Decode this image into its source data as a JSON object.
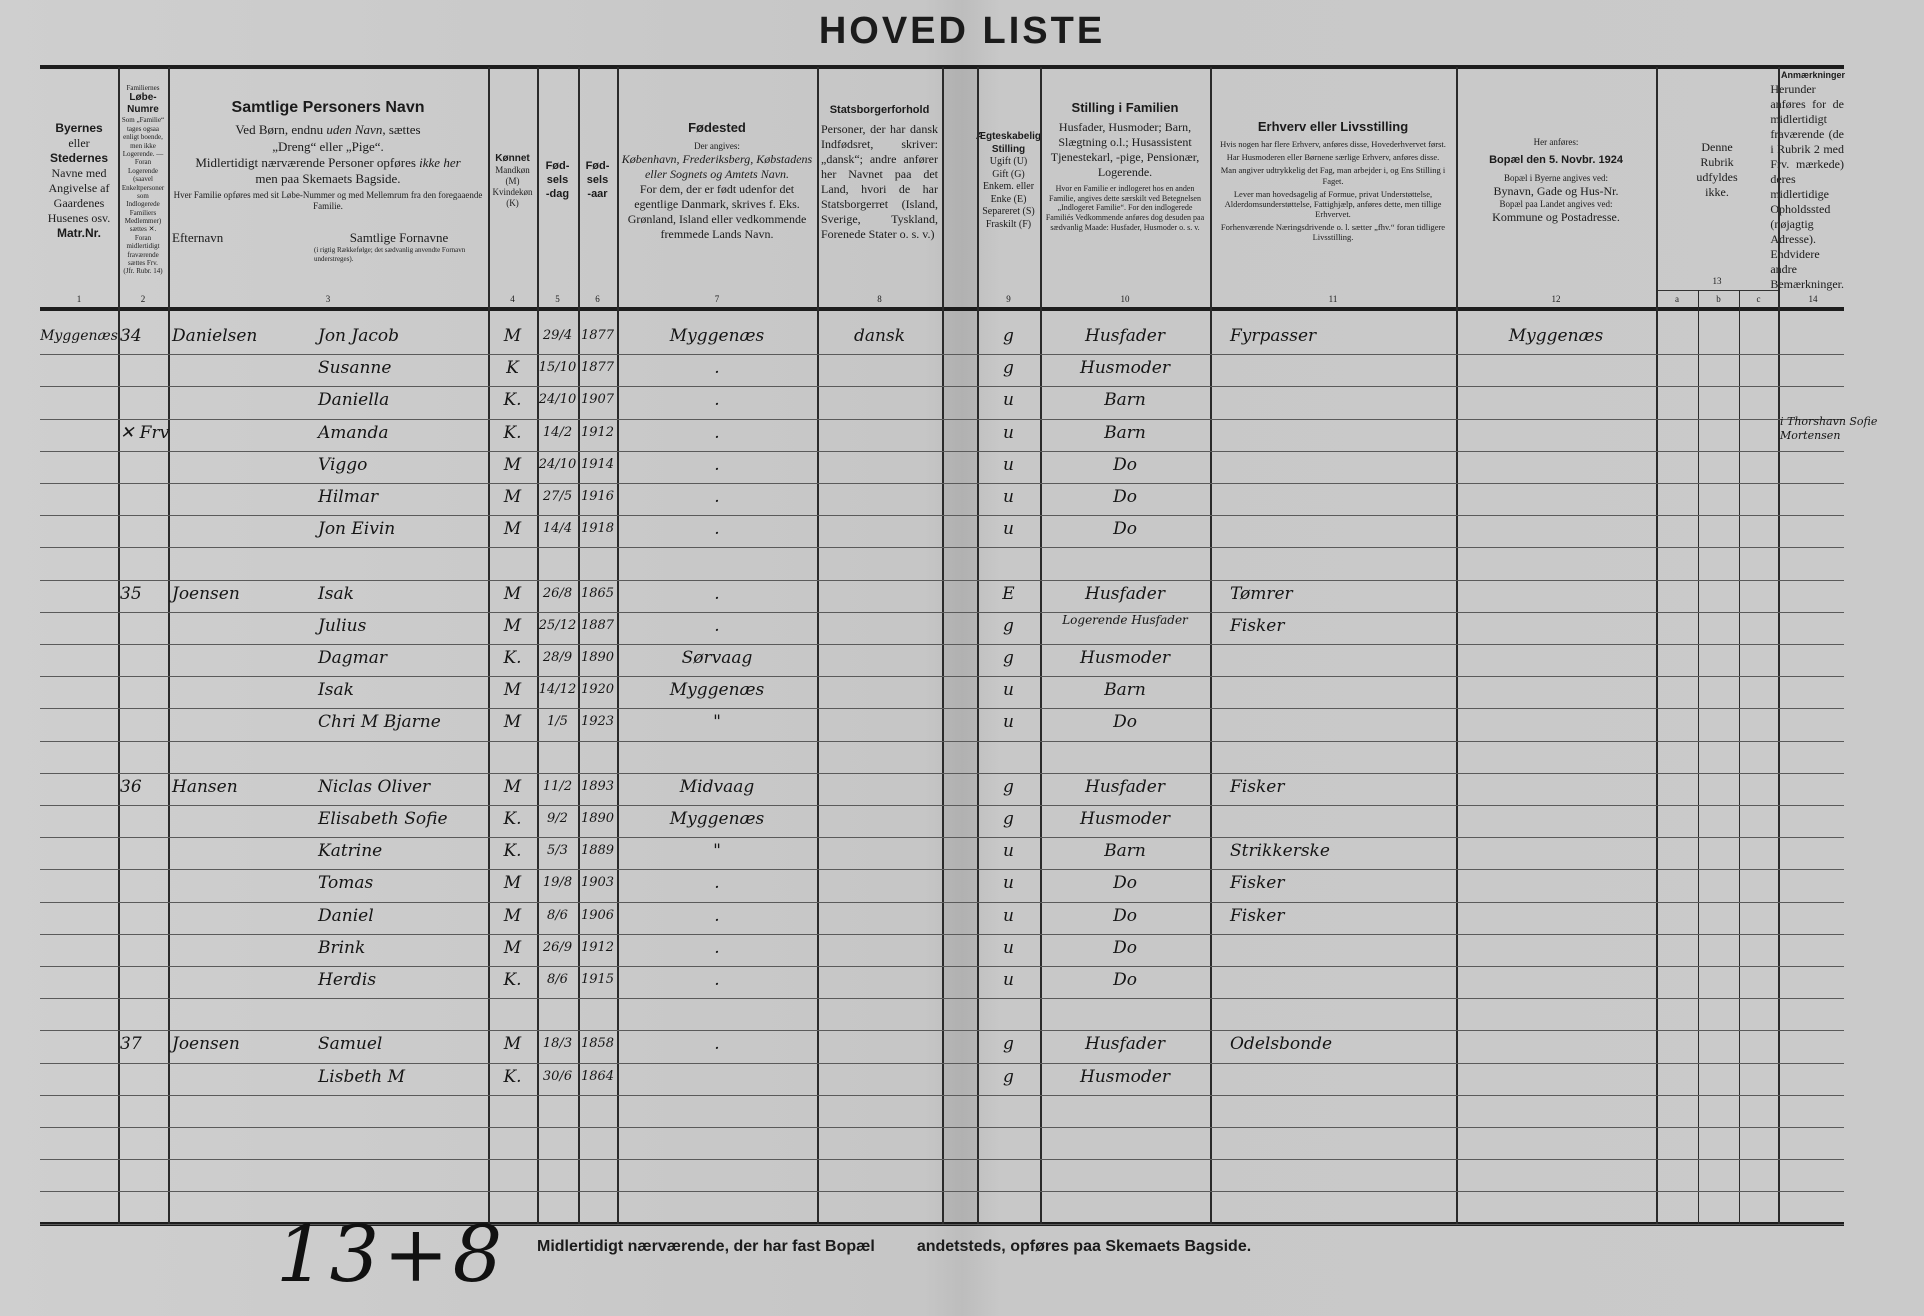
{
  "title": "HOVED LISTE",
  "header": {
    "c1": {
      "l1": "Byernes",
      "l2": "eller",
      "l3": "Stedernes",
      "l4": "Navne med Angivelse af Gaardenes Husenes osv.",
      "l5": "Matr.Nr.",
      "num": "1"
    },
    "c2": {
      "l1": "Familiernes",
      "l2": "Løbe-Numre",
      "l3": "Som „Familie“ tages ogsaa enligt boende, men ikke Logerende. — Foran Logerende (saavel Enkeltpersoner som Indlogerede Familiers Medlemmer) sættes ✕. Foran midlertidigt fraværende sættes Frv. (Jfr. Rubr. 14)",
      "num": "2"
    },
    "c3": {
      "title": "Samtlige Personers Navn",
      "l1a": "Ved Børn, endnu ",
      "l1b": "uden Navn",
      ", sættes": "",
      "l1c": ", sættes",
      "l2": "„Dreng“ eller „Pige“.",
      "l3a": "Midlertidigt nærværende Personer opføres ",
      "l3b": "ikke her",
      ",": "",
      "l4": "men paa Skemaets Bagside.",
      "l5": "Hver Familie opføres med sit Løbe-Nummer og med Mellemrum fra den foregaaende Familie.",
      "sub1": "Efternavn",
      "sub2": "Samtlige Fornavne",
      "sub3": "(i rigtig Rækkefølge; det sædvanlig anvendte Fornavn understreges).",
      "num": "3"
    },
    "c4": {
      "title": "Køn­net",
      "l1": "Mandkøn (M)",
      "l2": "Kvindekøn (K)",
      "num": "4"
    },
    "c5": {
      "title": "Fød-sels-dag",
      "num": "5"
    },
    "c6": {
      "title": "Fød-sels-aar",
      "num": "6"
    },
    "c7": {
      "title": "Fødested",
      "l1": "Der angives:",
      "l2": "København, Frederiksberg, Købstadens eller Sognets og Amtets Navn.",
      "l3": "For dem, der er født udenfor det egentlige Danmark, skrives f. Eks. Grønland, Island eller vedkommende fremmede Lands Navn.",
      "num": "7"
    },
    "c8": {
      "title": "Statsborgerforhold",
      "l1": "Personer, der har dansk Indfødsret, skriver: „dansk“; andre anfører her Navnet paa det Land, hvori de har Statsborgerret (Island, Sverige, Tyskland, Forenede Stater o. s. v.)",
      "num": "8"
    },
    "c9": {
      "title": "Ægteskabelig Stilling",
      "l1": "Ugift (U)",
      "l2": "Gift (G)",
      "l3": "Enkem. eller Enke (E)",
      "l4": "Separeret (S)",
      "l5": "Fraskilt (F)",
      "num": "9"
    },
    "c10": {
      "title": "Stilling i Familien",
      "l1": "Husfader, Husmoder; Barn, Slægtning o.l.; Husassistent Tjenestekarl, -pige, Pensionær, Logerende.",
      "l2": "Hvor en Familie er indlogeret hos en anden Familie, angives dette særskilt ved Betegnelsen „Indlogeret Familie“. For den indlogerede Familiés Vedkommende anføres dog desuden paa sædvanlig Maade: Husfader, Husmoder o. s. v.",
      "num": "10"
    },
    "c11": {
      "title": "Erhverv eller Livsstilling",
      "l1": "Hvis nogen har flere Erhverv, anføres disse, Hovederhvervet først.",
      "l2": "Har Husmoderen eller Børnene særlige Erhverv, anføres disse.",
      "l3": "Man angiver udtrykkelig det Fag, man arbejder i, og Ens Stilling i Faget.",
      "l4": "Lever man hovedsagelig af Formue, privat Understøttelse, Alderdomsunderstøttelse, Fattighjælp, anføres dette, men tillige Erhvervet.",
      "l5": "Forhenværende Næringsdrivende o. l. sætter „fhv.“ foran tidligere Livsstilling.",
      "num": "11"
    },
    "c12": {
      "l1": "Her anføres:",
      "l2": "Bopæl den 5. Novbr. 1924",
      "l3": "Bopæl i Byerne angives ved:",
      "l4": "Bynavn, Gade og Hus-Nr.",
      "l5": "Bopæl paa Landet angives ved:",
      "l6": "Kommune og Postadresse.",
      "num": "12"
    },
    "c13": {
      "l1": "Denne Rubrik udfyldes ikke.",
      "num": "13",
      "a": "a",
      "b": "b",
      "c": "c"
    },
    "c14": {
      "title": "Anmærkninger",
      "l1": "Herunder anføres for de midlertidigt fraværende (de i Rubrik 2 med Frv. mærkede) deres midlertidige Opholdssted (nøjagtig Adresse). Endvidere andre Bemærkninger.",
      "num": "14"
    }
  },
  "rows": [
    {
      "place": "Myggenæs",
      "famno": "34",
      "surname": "Danielsen",
      "given": "Jon Jacob",
      "sex": "M",
      "day": "29/4",
      "year": "1877",
      "birthplace": "Myggenæs",
      "citizenship": "dansk",
      "marital": "g",
      "position": "Husfader",
      "occupation": "Fyrpasser",
      "residence": "Myggenæs",
      "remarks": ""
    },
    {
      "given": "Susanne",
      "sex": "K",
      "day": "15/10",
      "year": "1877",
      "birthplace": ".",
      "marital": "g",
      "position": "Husmoder"
    },
    {
      "given": "Daniella",
      "sex": "K.",
      "day": "24/10",
      "year": "1907",
      "birthplace": ".",
      "marital": "u",
      "position": "Barn"
    },
    {
      "famno": "✕ Frv",
      "given": "Amanda",
      "sex": "K.",
      "day": "14/2",
      "year": "1912",
      "birthplace": ".",
      "marital": "u",
      "position": "Barn",
      "remarks": "i Thorshavn Sofie Mortensen"
    },
    {
      "given": "Viggo",
      "sex": "M",
      "day": "24/10",
      "year": "1914",
      "birthplace": ".",
      "marital": "u",
      "position": "Do"
    },
    {
      "given": "Hilmar",
      "sex": "M",
      "day": "27/5",
      "year": "1916",
      "birthplace": ".",
      "marital": "u",
      "position": "Do"
    },
    {
      "given": "Jon Eivin",
      "sex": "M",
      "day": "14/4",
      "year": "1918",
      "birthplace": ".",
      "marital": "u",
      "position": "Do"
    },
    {},
    {
      "famno": "35",
      "surname": "Joensen",
      "given": "Isak",
      "sex": "M",
      "day": "26/8",
      "year": "1865",
      "birthplace": ".",
      "marital": "E",
      "position": "Husfader",
      "occupation": "Tømrer"
    },
    {
      "given": "Julius",
      "sex": "M",
      "day": "25/12",
      "year": "1887",
      "birthplace": ".",
      "marital": "g",
      "position": "Logerende Husfader",
      "occupation": "Fisker"
    },
    {
      "given": "Dagmar",
      "sex": "K.",
      "day": "28/9",
      "year": "1890",
      "birthplace": "Sørvaag",
      "marital": "g",
      "position": "Husmoder"
    },
    {
      "given": "Isak",
      "sex": "M",
      "day": "14/12",
      "year": "1920",
      "birthplace": "Myggenæs",
      "marital": "u",
      "position": "Barn"
    },
    {
      "given": "Chri M Bjarne",
      "sex": "M",
      "day": "1/5",
      "year": "1923",
      "birthplace": "\"",
      "marital": "u",
      "position": "Do"
    },
    {},
    {
      "famno": "36",
      "surname": "Hansen",
      "given": "Niclas Oliver",
      "sex": "M",
      "day": "11/2",
      "year": "1893",
      "birthplace": "Midvaag",
      "marital": "g",
      "position": "Husfader",
      "occupation": "Fisker"
    },
    {
      "given": "Elisabeth Sofie",
      "sex": "K.",
      "day": "9/2",
      "year": "1890",
      "birthplace": "Myggenæs",
      "marital": "g",
      "position": "Husmoder"
    },
    {
      "given": "Katrine",
      "sex": "K.",
      "day": "5/3",
      "year": "1889",
      "birthplace": "\"",
      "marital": "u",
      "position": "Barn",
      "occupation": "Strikkerske"
    },
    {
      "given": "Tomas",
      "sex": "M",
      "day": "19/8",
      "year": "1903",
      "birthplace": ".",
      "marital": "u",
      "position": "Do",
      "occupation": "Fisker"
    },
    {
      "given": "Daniel",
      "sex": "M",
      "day": "8/6",
      "year": "1906",
      "birthplace": ".",
      "marital": "u",
      "position": "Do",
      "occupation": "Fisker"
    },
    {
      "given": "Brink",
      "sex": "M",
      "day": "26/9",
      "year": "1912",
      "birthplace": ".",
      "marital": "u",
      "position": "Do"
    },
    {
      "given": "Herdis",
      "sex": "K.",
      "day": "8/6",
      "year": "1915",
      "birthplace": ".",
      "marital": "u",
      "position": "Do"
    },
    {},
    {
      "famno": "37",
      "surname": "Joensen",
      "given": "Samuel",
      "sex": "M",
      "day": "18/3",
      "year": "1858",
      "birthplace": ".",
      "marital": "g",
      "position": "Husfader",
      "occupation": "Odelsbonde"
    },
    {
      "given": "Lisbeth M",
      "sex": "K.",
      "day": "30/6",
      "year": "1864",
      "marital": "g",
      "position": "Husmoder"
    },
    {},
    {},
    {},
    {}
  ],
  "footer": {
    "note_left": "Midlertidigt nærværende, der har fast Bopæl",
    "note_right": "andetsteds, opføres paa Skemaets Bagside.",
    "tally": "13+8"
  }
}
